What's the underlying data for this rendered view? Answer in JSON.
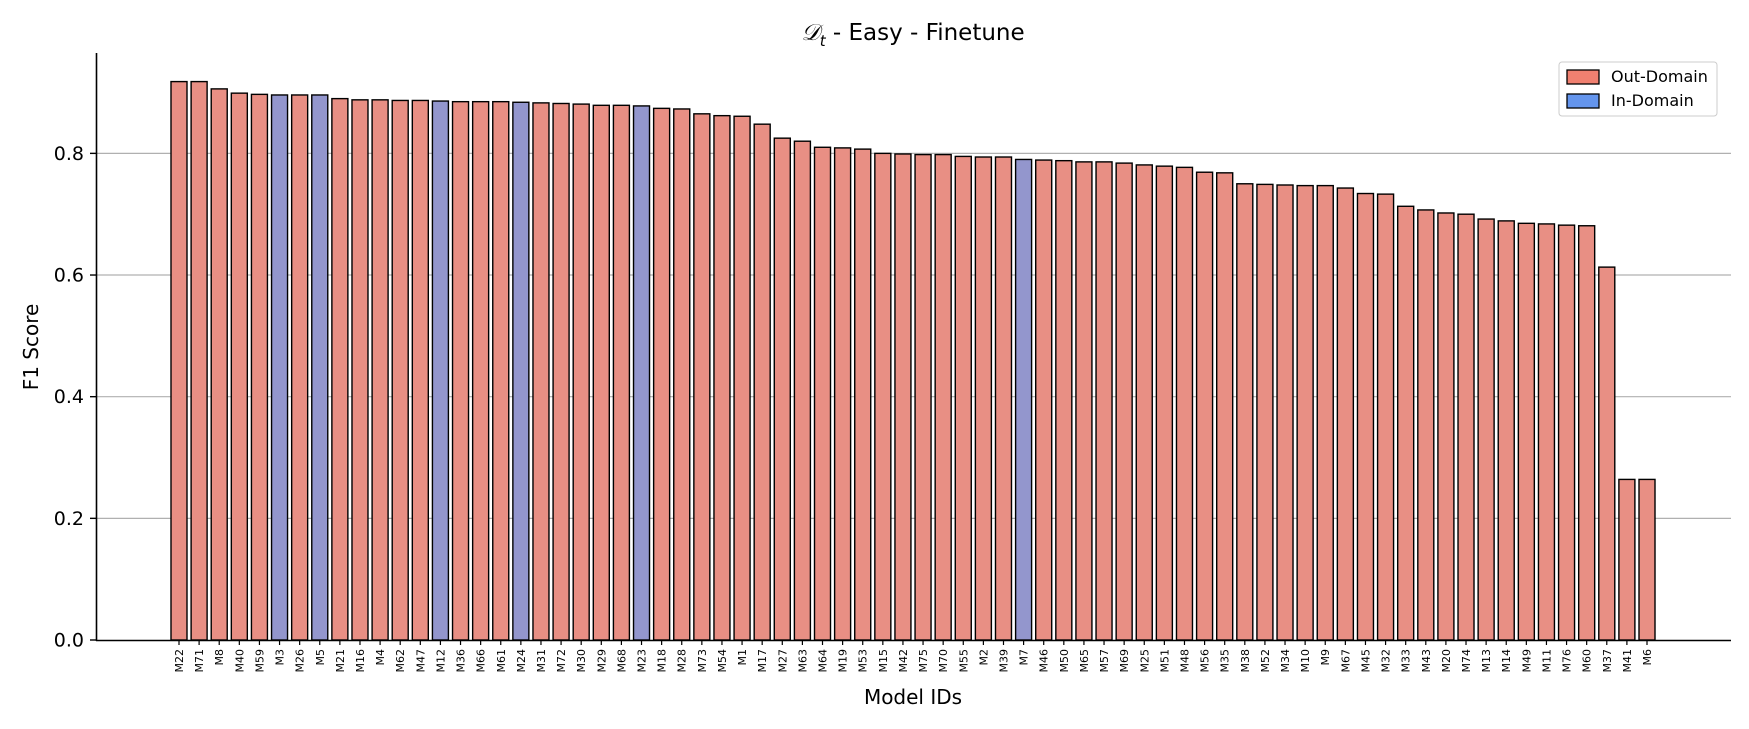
{
  "chart_data": {
    "type": "bar",
    "title_symbol": "𝒟",
    "title_subscript": "t",
    "title_rest": " - Easy - Finetune",
    "xlabel": "Model IDs",
    "ylabel": "F1 Score",
    "ylim": [
      0,
      0.965
    ],
    "yticks": [
      "0.0",
      "0.2",
      "0.4",
      "0.6",
      "0.8"
    ],
    "ytick_values": [
      0,
      0.2,
      0.4,
      0.6,
      0.8
    ],
    "grid": "horizontal",
    "legend_position": "top-right",
    "legend": [
      {
        "label": "Out-Domain",
        "color": "#f08070"
      },
      {
        "label": "In-Domain",
        "color": "#6495ed"
      }
    ],
    "bar_colors": {
      "out": "#e88f84",
      "in": "#9396cd"
    },
    "categories": [
      "M22",
      "M71",
      "M8",
      "M40",
      "M59",
      "M3",
      "M26",
      "M5",
      "M21",
      "M16",
      "M4",
      "M62",
      "M47",
      "M12",
      "M36",
      "M66",
      "M61",
      "M24",
      "M31",
      "M72",
      "M30",
      "M29",
      "M68",
      "M23",
      "M18",
      "M28",
      "M73",
      "M54",
      "M1",
      "M17",
      "M27",
      "M63",
      "M64",
      "M19",
      "M53",
      "M15",
      "M42",
      "M75",
      "M70",
      "M55",
      "M2",
      "M39",
      "M7",
      "M46",
      "M50",
      "M65",
      "M57",
      "M69",
      "M25",
      "M51",
      "M48",
      "M56",
      "M35",
      "M38",
      "M52",
      "M34",
      "M10",
      "M9",
      "M67",
      "M45",
      "M32",
      "M33",
      "M43",
      "M20",
      "M74",
      "M13",
      "M14",
      "M49",
      "M11",
      "M76",
      "M60",
      "M37",
      "M41",
      "M6"
    ],
    "values": [
      0.918,
      0.918,
      0.906,
      0.899,
      0.897,
      0.896,
      0.896,
      0.896,
      0.89,
      0.888,
      0.888,
      0.887,
      0.887,
      0.886,
      0.885,
      0.885,
      0.885,
      0.884,
      0.883,
      0.882,
      0.881,
      0.879,
      0.879,
      0.878,
      0.874,
      0.873,
      0.865,
      0.862,
      0.861,
      0.848,
      0.825,
      0.82,
      0.81,
      0.809,
      0.807,
      0.8,
      0.799,
      0.798,
      0.798,
      0.795,
      0.794,
      0.794,
      0.79,
      0.789,
      0.788,
      0.786,
      0.786,
      0.784,
      0.781,
      0.779,
      0.777,
      0.769,
      0.768,
      0.75,
      0.749,
      0.748,
      0.747,
      0.747,
      0.743,
      0.734,
      0.733,
      0.713,
      0.707,
      0.702,
      0.7,
      0.692,
      0.689,
      0.685,
      0.684,
      0.682,
      0.681,
      0.613,
      0.264,
      0.264
    ],
    "domain": [
      "out",
      "out",
      "out",
      "out",
      "out",
      "in",
      "out",
      "in",
      "out",
      "out",
      "out",
      "out",
      "out",
      "in",
      "out",
      "out",
      "out",
      "in",
      "out",
      "out",
      "out",
      "out",
      "out",
      "in",
      "out",
      "out",
      "out",
      "out",
      "out",
      "out",
      "out",
      "out",
      "out",
      "out",
      "out",
      "out",
      "out",
      "out",
      "out",
      "out",
      "out",
      "out",
      "in",
      "out",
      "out",
      "out",
      "out",
      "out",
      "out",
      "out",
      "out",
      "out",
      "out",
      "out",
      "out",
      "out",
      "out",
      "out",
      "out",
      "out",
      "out",
      "out",
      "out",
      "out",
      "out",
      "out",
      "out",
      "out",
      "out",
      "out",
      "out",
      "out",
      "out",
      "out"
    ]
  }
}
